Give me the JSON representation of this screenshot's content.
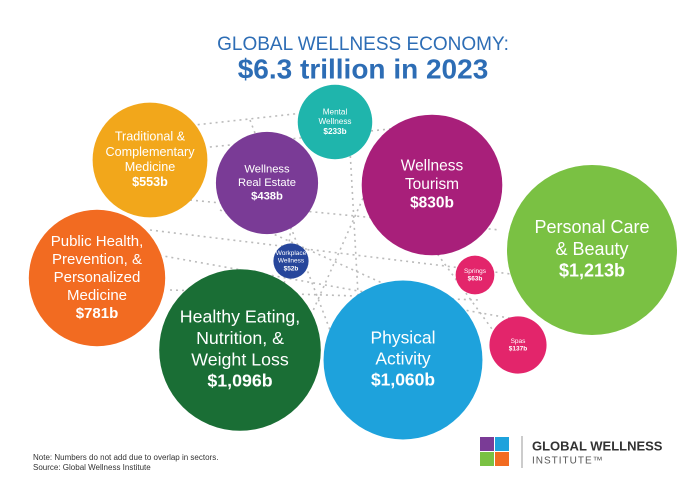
{
  "chart_data": {
    "type": "bubble",
    "title": "GLOBAL WELLNESS ECONOMY:",
    "subtitle": "$6.3 trillion in 2023",
    "items": [
      {
        "labels": [
          "Traditional &",
          "Complementary",
          "Medicine"
        ],
        "value": 553,
        "value_label": "$553b",
        "color": "#f2a71b"
      },
      {
        "labels": [
          "Mental",
          "Wellness"
        ],
        "value": 233,
        "value_label": "$233b",
        "color": "#1fb5ac"
      },
      {
        "labels": [
          "Wellness",
          "Real Estate"
        ],
        "value": 438,
        "value_label": "$438b",
        "color": "#7a3b96"
      },
      {
        "labels": [
          "Wellness",
          "Tourism"
        ],
        "value": 830,
        "value_label": "$830b",
        "color": "#a81f7a"
      },
      {
        "labels": [
          "Personal Care",
          "& Beauty"
        ],
        "value": 1213,
        "value_label": "$1,213b",
        "color": "#7ac143"
      },
      {
        "labels": [
          "Public Health,",
          "Prevention, &",
          "Personalized",
          "Medicine"
        ],
        "value": 781,
        "value_label": "$781b",
        "color": "#f26b21"
      },
      {
        "labels": [
          "Workplace",
          "Wellness"
        ],
        "value": 52,
        "value_label": "$52b",
        "color": "#27469b"
      },
      {
        "labels": [
          "Healthy Eating,",
          "Nutrition, &",
          "Weight Loss"
        ],
        "value": 1096,
        "value_label": "$1,096b",
        "color": "#1a6e35"
      },
      {
        "labels": [
          "Physical",
          "Activity"
        ],
        "value": 1060,
        "value_label": "$1,060b",
        "color": "#1ea2dc"
      },
      {
        "labels": [
          "Springs"
        ],
        "value": 63,
        "value_label": "$63b",
        "color": "#e3256b"
      },
      {
        "labels": [
          "Spas"
        ],
        "value": 137,
        "value_label": "$137b",
        "color": "#e3256b"
      }
    ],
    "notes": [
      "Note: Numbers do not add due to overlap in sectors.",
      "Source: Global Wellness Institute"
    ],
    "logo": [
      "GLOBAL WELLNESS",
      "INSTITUTE™"
    ]
  }
}
